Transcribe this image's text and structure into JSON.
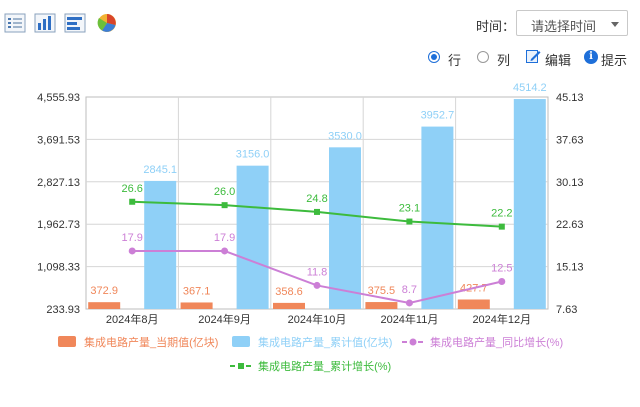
{
  "toolbar": {
    "icons": [
      "list-view-icon",
      "bar-chart-icon",
      "horizontal-bar-icon",
      "pie-chart-icon"
    ],
    "time_label": "时间：",
    "time_placeholder": "请选择时间"
  },
  "controls": {
    "row_label": "行",
    "col_label": "列",
    "edit_label": "编辑",
    "tip_label": "提示",
    "selected": "row"
  },
  "chart_data": {
    "type": "bar",
    "categories": [
      "2024年8月",
      "2024年9月",
      "2024年10月",
      "2024年11月",
      "2024年12月"
    ],
    "left_axis": {
      "ticks": [
        "233.93",
        "1,098.33",
        "1,962.73",
        "2,827.13",
        "3,691.53",
        "4,555.93"
      ],
      "min": 233.93,
      "max": 4555.93
    },
    "right_axis": {
      "ticks": [
        "7.63",
        "15.13",
        "22.63",
        "30.13",
        "37.63",
        "45.13"
      ],
      "min": 7.63,
      "max": 45.13
    },
    "grid": true,
    "legend_position": "bottom",
    "series": [
      {
        "name": "集成电路产量_当期值(亿块)",
        "kind": "bar",
        "axis": "left",
        "color": "#f0875a",
        "values": [
          372.9,
          367.1,
          358.6,
          375.5,
          427.7
        ],
        "labels": [
          "372.9",
          "367.1",
          "358.6",
          "375.5",
          "427.7"
        ]
      },
      {
        "name": "集成电路产量_累计值(亿块)",
        "kind": "bar",
        "axis": "left",
        "color": "#8fd0f7",
        "values": [
          2845.1,
          3156.0,
          3530.0,
          3952.7,
          4514.2
        ],
        "labels": [
          "2845.1",
          "3156.0",
          "3530.0",
          "3952.7",
          "4514.2"
        ]
      },
      {
        "name": "集成电路产量_同比增长(%)",
        "kind": "line",
        "axis": "right",
        "color": "#cc7fd6",
        "values": [
          17.9,
          17.9,
          11.8,
          8.7,
          12.5
        ],
        "labels": [
          "17.9",
          "17.9",
          "11.8",
          "8.7",
          "12.5"
        ]
      },
      {
        "name": "集成电路产量_累计增长(%)",
        "kind": "line",
        "axis": "right",
        "color": "#3dbb3d",
        "values": [
          26.6,
          26.0,
          24.8,
          23.1,
          22.2
        ],
        "labels": [
          "26.6",
          "26.0",
          "24.8",
          "23.1",
          "22.2"
        ]
      }
    ]
  }
}
